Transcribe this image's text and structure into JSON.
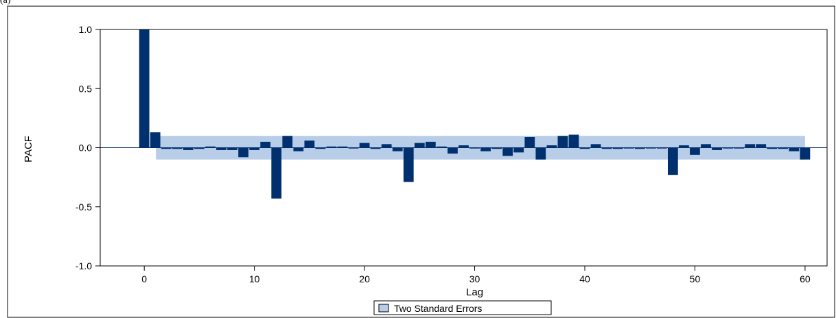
{
  "panel_label": "(a)",
  "chart_data": {
    "type": "bar",
    "xlabel": "Lag",
    "ylabel": "PACF",
    "xlim": [
      -4,
      62
    ],
    "ylim": [
      -1.0,
      1.0
    ],
    "x_ticks": [
      0,
      10,
      20,
      30,
      40,
      50,
      60
    ],
    "y_ticks": [
      1.0,
      0.5,
      0.0,
      -0.5,
      -1.0
    ],
    "y_tick_labels": [
      "1.0",
      "0.5",
      "0.0",
      "-0.5",
      "-1.0"
    ],
    "grid": false,
    "legend": {
      "label": "Two Standard Errors",
      "placement": "bottom-center"
    },
    "colors": {
      "bar": "#00306e",
      "band": "#b8cde8",
      "band_edge": "#8eaed6"
    },
    "confidence_band": {
      "x_start": 1,
      "x_end": 60,
      "upper": 0.1,
      "lower": -0.1
    },
    "x": [
      0,
      1,
      2,
      3,
      4,
      5,
      6,
      7,
      8,
      9,
      10,
      11,
      12,
      13,
      14,
      15,
      16,
      17,
      18,
      19,
      20,
      21,
      22,
      23,
      24,
      25,
      26,
      27,
      28,
      29,
      30,
      31,
      32,
      33,
      34,
      35,
      36,
      37,
      38,
      39,
      40,
      41,
      42,
      43,
      44,
      45,
      46,
      47,
      48,
      49,
      50,
      51,
      52,
      53,
      54,
      55,
      56,
      57,
      58,
      59,
      60
    ],
    "values": [
      1.0,
      0.13,
      -0.01,
      -0.01,
      -0.02,
      -0.01,
      0.01,
      -0.02,
      -0.02,
      -0.08,
      -0.02,
      0.05,
      -0.43,
      0.1,
      -0.03,
      0.06,
      -0.01,
      0.01,
      0.01,
      0.0,
      0.04,
      -0.01,
      0.03,
      -0.03,
      -0.29,
      0.04,
      0.05,
      0.01,
      -0.05,
      0.02,
      0.0,
      -0.03,
      -0.01,
      -0.07,
      -0.04,
      0.09,
      -0.1,
      0.02,
      0.1,
      0.11,
      -0.01,
      0.03,
      -0.01,
      -0.01,
      0.0,
      -0.01,
      0.0,
      0.0,
      -0.23,
      0.02,
      -0.06,
      0.03,
      -0.02,
      0.0,
      0.0,
      0.03,
      0.03,
      -0.01,
      -0.01,
      -0.03,
      -0.1
    ]
  }
}
